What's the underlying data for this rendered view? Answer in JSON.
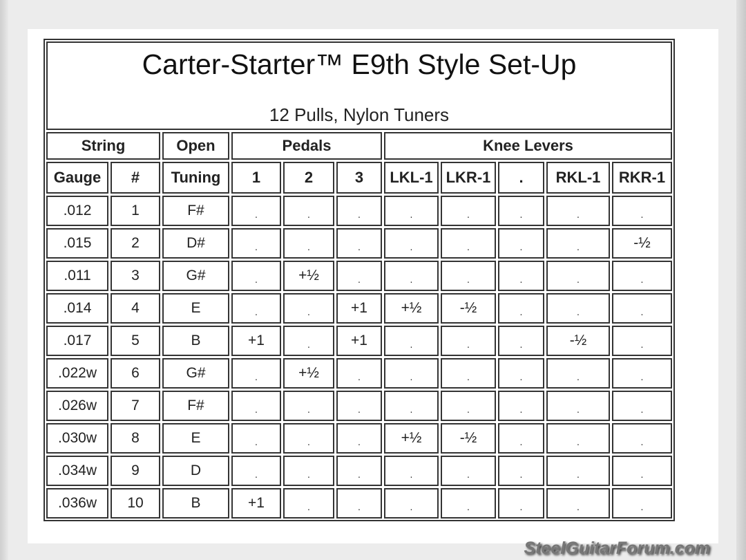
{
  "title": "Carter-Starter™ E9th Style Set-Up",
  "subtitle": "12 Pulls, Nylon Tuners",
  "group_headers": [
    "String",
    "Open",
    "Pedals",
    "Knee Levers"
  ],
  "column_headers": [
    "Gauge",
    "#",
    "Tuning",
    "1",
    "2",
    "3",
    "LKL-1",
    "LKR-1",
    ".",
    "RKL-1",
    "RKR-1"
  ],
  "rows": [
    [
      ".012",
      "1",
      "F#",
      ".",
      ".",
      ".",
      ".",
      ".",
      ".",
      ".",
      "."
    ],
    [
      ".015",
      "2",
      "D#",
      ".",
      ".",
      ".",
      ".",
      ".",
      ".",
      ".",
      "-½"
    ],
    [
      ".011",
      "3",
      "G#",
      ".",
      "+½",
      ".",
      ".",
      ".",
      ".",
      ".",
      "."
    ],
    [
      ".014",
      "4",
      "E",
      ".",
      ".",
      "+1",
      "+½",
      "-½",
      ".",
      ".",
      "."
    ],
    [
      ".017",
      "5",
      "B",
      "+1",
      ".",
      "+1",
      ".",
      ".",
      ".",
      "-½",
      "."
    ],
    [
      ".022w",
      "6",
      "G#",
      ".",
      "+½",
      ".",
      ".",
      ".",
      ".",
      ".",
      "."
    ],
    [
      ".026w",
      "7",
      "F#",
      ".",
      ".",
      ".",
      ".",
      ".",
      ".",
      ".",
      "."
    ],
    [
      ".030w",
      "8",
      "E",
      ".",
      ".",
      ".",
      "+½",
      "-½",
      ".",
      ".",
      "."
    ],
    [
      ".034w",
      "9",
      "D",
      ".",
      ".",
      ".",
      ".",
      ".",
      ".",
      ".",
      "."
    ],
    [
      ".036w",
      "10",
      "B",
      "+1",
      ".",
      ".",
      ".",
      ".",
      ".",
      ".",
      "."
    ]
  ],
  "watermark": "SteelGuitarForum.com"
}
